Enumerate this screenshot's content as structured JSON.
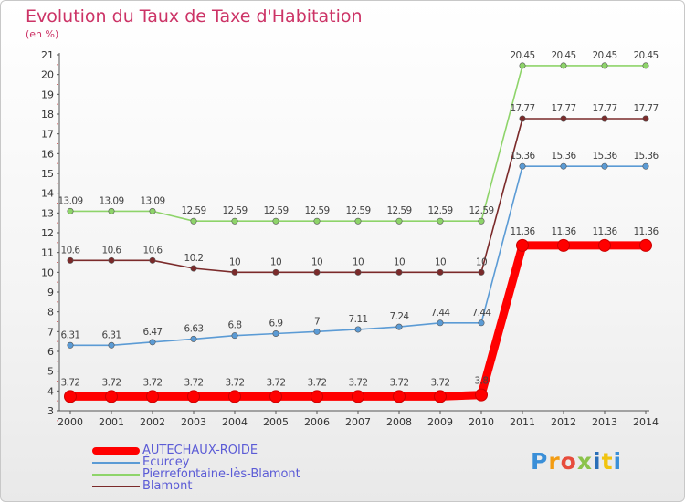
{
  "title": "Evolution du Taux de Taxe d'Habitation",
  "unit_label": "(en %)",
  "logo_text": "Proxiti",
  "chart_data": {
    "type": "line",
    "title": "Evolution du Taux de Taxe d'Habitation",
    "ylabel": "(en %)",
    "xlabel": "",
    "x": [
      "2000",
      "2001",
      "2002",
      "2003",
      "2004",
      "2005",
      "2006",
      "2007",
      "2008",
      "2009",
      "2010",
      "2011",
      "2012",
      "2013",
      "2014"
    ],
    "ylim": [
      3,
      21
    ],
    "yticks": [
      3,
      4,
      5,
      6,
      7,
      8,
      9,
      10,
      11,
      12,
      13,
      14,
      15,
      16,
      17,
      18,
      19,
      20,
      21
    ],
    "grid": false,
    "legend_position": "bottom-left",
    "series": [
      {
        "name": "AUTECHAUX-ROIDE",
        "color": "#ff0000",
        "values": [
          3.72,
          3.72,
          3.72,
          3.72,
          3.72,
          3.72,
          3.72,
          3.72,
          3.72,
          3.72,
          3.8,
          11.36,
          11.36,
          11.36,
          11.36
        ],
        "labels": [
          "3.72",
          "3.72",
          "3.72",
          "3.72",
          "3.72",
          "3.72",
          "3.72",
          "3.72",
          "3.72",
          "3.72",
          "3.8",
          "11.36",
          "11.36",
          "11.36",
          "11.36"
        ]
      },
      {
        "name": "Écurcey",
        "color": "#5b9bd5",
        "values": [
          6.31,
          6.31,
          6.47,
          6.63,
          6.8,
          6.9,
          7,
          7.11,
          7.24,
          7.44,
          7.44,
          15.36,
          15.36,
          15.36,
          15.36
        ],
        "labels": [
          "6.31",
          "6.31",
          "6.47",
          "6.63",
          "6.8",
          "6.9",
          "7",
          "7.11",
          "7.24",
          "7.44",
          "7.44",
          "15.36",
          "15.36",
          "15.36",
          "15.36"
        ]
      },
      {
        "name": "Pierrefontaine-lès-Blamont",
        "color": "#8ed46a",
        "values": [
          13.09,
          13.09,
          13.09,
          12.59,
          12.59,
          12.59,
          12.59,
          12.59,
          12.59,
          12.59,
          12.59,
          20.45,
          20.45,
          20.45,
          20.45
        ],
        "labels": [
          "13.09",
          "13.09",
          "13.09",
          "12.59",
          "12.59",
          "12.59",
          "12.59",
          "12.59",
          "12.59",
          "12.59",
          "12.59",
          "20.45",
          "20.45",
          "20.45",
          "20.45"
        ]
      },
      {
        "name": "Blamont",
        "color": "#7b2a2a",
        "values": [
          10.6,
          10.6,
          10.6,
          10.2,
          10,
          10,
          10,
          10,
          10,
          10,
          10,
          17.77,
          17.77,
          17.77,
          17.77
        ],
        "labels": [
          "10.6",
          "10.6",
          "10.6",
          "10.2",
          "10",
          "10",
          "10",
          "10",
          "10",
          "10",
          "10",
          "17.77",
          "17.77",
          "17.77",
          "17.77"
        ]
      }
    ]
  },
  "legend": {
    "items": [
      {
        "label": "AUTECHAUX-ROIDE",
        "color": "#ff0000"
      },
      {
        "label": "Écurcey",
        "color": "#5b9bd5"
      },
      {
        "label": "Pierrefontaine-lès-Blamont",
        "color": "#8ed46a"
      },
      {
        "label": "Blamont",
        "color": "#7b2a2a"
      }
    ]
  }
}
